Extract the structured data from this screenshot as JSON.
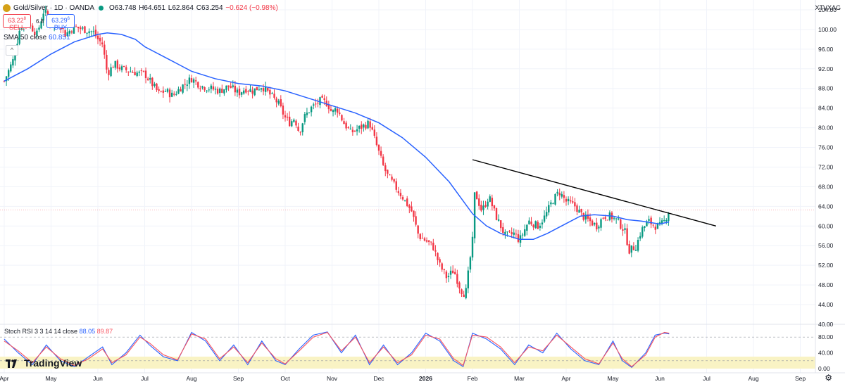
{
  "header": {
    "symbol_title": "Gold/Silver · 1D · OANDA",
    "ohlc": {
      "o": "O63.748",
      "h": "H64.651",
      "l": "L62.864",
      "c": "C63.254",
      "chg": "−0.624 (−0.98%)"
    },
    "sell_price": "63.22",
    "sell_sup": "8",
    "sell_label": "SELL",
    "spread": "6.8",
    "buy_price": "63.29",
    "buy_sup": "6",
    "buy_label": "BUY",
    "sma_label": "SMA 50 close",
    "sma_value": "60.851",
    "collapse_icon": "^",
    "right_symbol": "XTVXAG"
  },
  "stoch": {
    "label": "Stoch RSI 3 3 14 14 close",
    "k_value": "88.05",
    "d_value": "89.87",
    "k_color": "#2962ff",
    "d_color": "#f7525f"
  },
  "branding": {
    "logo_text": "TradingView"
  },
  "settings_icon": "gear-icon",
  "colors": {
    "up": "#089981",
    "down": "#f23645",
    "sma": "#2962ff",
    "trendline": "#000000"
  },
  "chart_data": [
    {
      "type": "candlestick",
      "title": "Gold/Silver · 1D · OANDA",
      "ylim": [
        40,
        106
      ],
      "price_ticks": [
        104,
        100,
        96,
        92,
        88,
        84,
        80,
        76,
        72,
        68,
        64,
        60,
        56,
        52,
        48,
        44,
        40
      ],
      "price_tick_labels": [
        "104.00",
        "100.00",
        "96.00",
        "92.00",
        "88.00",
        "84.00",
        "80.00",
        "76.00",
        "72.00",
        "68.00",
        "64.00",
        "60.00",
        "56.00",
        "52.00",
        "48.00",
        "44.00",
        "40.00"
      ],
      "x_labels": [
        "Apr",
        "May",
        "Jun",
        "Jul",
        "Aug",
        "Sep",
        "Oct",
        "Nov",
        "Dec",
        "2026",
        "Feb",
        "Mar",
        "Apr",
        "May",
        "Jun",
        "Jul",
        "Aug",
        "Sep"
      ],
      "x_label_months": [
        0,
        1,
        2,
        3,
        4,
        5,
        6,
        7,
        8,
        9,
        10,
        11,
        12,
        13,
        14,
        15,
        16,
        17
      ],
      "current_price": 63.254,
      "close_path": [
        [
          0.0,
          89.5
        ],
        [
          0.2,
          94
        ],
        [
          0.35,
          101
        ],
        [
          0.5,
          101.5
        ],
        [
          0.7,
          99
        ],
        [
          0.85,
          104
        ],
        [
          1.0,
          101
        ],
        [
          1.15,
          102
        ],
        [
          1.3,
          99
        ],
        [
          1.5,
          100.5
        ],
        [
          1.7,
          100
        ],
        [
          1.9,
          99.5
        ],
        [
          2.0,
          98
        ],
        [
          2.1,
          97
        ],
        [
          2.2,
          91
        ],
        [
          2.35,
          93
        ],
        [
          2.5,
          92
        ],
        [
          2.7,
          91.5
        ],
        [
          2.9,
          91
        ],
        [
          3.0,
          91
        ],
        [
          3.15,
          89
        ],
        [
          3.3,
          87
        ],
        [
          3.45,
          87.5
        ],
        [
          3.6,
          86.5
        ],
        [
          3.8,
          88.5
        ],
        [
          4.0,
          90
        ],
        [
          4.2,
          88.5
        ],
        [
          4.4,
          88
        ],
        [
          4.6,
          87.5
        ],
        [
          4.8,
          88.5
        ],
        [
          5.0,
          87
        ],
        [
          5.15,
          88
        ],
        [
          5.3,
          87.5
        ],
        [
          5.5,
          88.5
        ],
        [
          5.7,
          86.5
        ],
        [
          5.85,
          85
        ],
        [
          6.0,
          82
        ],
        [
          6.1,
          81
        ],
        [
          6.2,
          82
        ],
        [
          6.3,
          79
        ],
        [
          6.4,
          82
        ],
        [
          6.55,
          84
        ],
        [
          6.75,
          85.5
        ],
        [
          6.9,
          85
        ],
        [
          7.0,
          83
        ],
        [
          7.1,
          84
        ],
        [
          7.25,
          81
        ],
        [
          7.4,
          79
        ],
        [
          7.6,
          80
        ],
        [
          7.8,
          81
        ],
        [
          8.0,
          75
        ],
        [
          8.1,
          72
        ],
        [
          8.2,
          70
        ],
        [
          8.35,
          68
        ],
        [
          8.5,
          66
        ],
        [
          8.7,
          63
        ],
        [
          8.85,
          58
        ],
        [
          9.0,
          57
        ],
        [
          9.15,
          56
        ],
        [
          9.3,
          52
        ],
        [
          9.45,
          49.5
        ],
        [
          9.6,
          51
        ],
        [
          9.75,
          47
        ],
        [
          9.85,
          46
        ],
        [
          10.0,
          57
        ],
        [
          10.05,
          67
        ],
        [
          10.2,
          63
        ],
        [
          10.35,
          66
        ],
        [
          10.5,
          62
        ],
        [
          10.7,
          58
        ],
        [
          10.9,
          58.5
        ],
        [
          11.0,
          57
        ],
        [
          11.2,
          61
        ],
        [
          11.4,
          60
        ],
        [
          11.55,
          62
        ],
        [
          11.7,
          65
        ],
        [
          11.85,
          67
        ],
        [
          12.0,
          65
        ],
        [
          12.2,
          64
        ],
        [
          12.35,
          62
        ],
        [
          12.5,
          61
        ],
        [
          12.65,
          60
        ],
        [
          12.8,
          62
        ],
        [
          12.95,
          62
        ],
        [
          13.1,
          61
        ],
        [
          13.25,
          59
        ],
        [
          13.35,
          55
        ],
        [
          13.5,
          56
        ],
        [
          13.6,
          59
        ],
        [
          13.75,
          61
        ],
        [
          13.9,
          60
        ],
        [
          14.0,
          60
        ],
        [
          14.1,
          61
        ],
        [
          14.2,
          63.25
        ]
      ],
      "sma50_path": [
        [
          0.0,
          89.5
        ],
        [
          0.5,
          92
        ],
        [
          1.0,
          95
        ],
        [
          1.5,
          97.5
        ],
        [
          2.0,
          99
        ],
        [
          2.2,
          99.3
        ],
        [
          2.5,
          99
        ],
        [
          2.8,
          98
        ],
        [
          3.0,
          96.5
        ],
        [
          3.5,
          94
        ],
        [
          4.0,
          91.5
        ],
        [
          4.5,
          90
        ],
        [
          5.0,
          89
        ],
        [
          5.5,
          88.5
        ],
        [
          6.0,
          87.5
        ],
        [
          6.5,
          86
        ],
        [
          7.0,
          84.5
        ],
        [
          7.5,
          83
        ],
        [
          8.0,
          81
        ],
        [
          8.5,
          78
        ],
        [
          9.0,
          74
        ],
        [
          9.5,
          69
        ],
        [
          10.0,
          62.5
        ],
        [
          10.3,
          60
        ],
        [
          10.6,
          58.5
        ],
        [
          11.0,
          57.3
        ],
        [
          11.3,
          57.3
        ],
        [
          11.6,
          58.5
        ],
        [
          12.0,
          60.5
        ],
        [
          12.3,
          62
        ],
        [
          12.6,
          62.3
        ],
        [
          13.0,
          62
        ],
        [
          13.3,
          61.3
        ],
        [
          13.6,
          61
        ],
        [
          14.0,
          60.4
        ],
        [
          14.2,
          60.85
        ]
      ],
      "trendline": {
        "from": [
          10.0,
          73.5
        ],
        "to": [
          15.2,
          60
        ]
      }
    },
    {
      "type": "line",
      "title": "Stoch RSI 3 3 14 14 close",
      "ylim": [
        0,
        100
      ],
      "y_ticks": [
        80,
        40,
        0
      ],
      "y_tick_labels": [
        "80.00",
        "40.00",
        "0.00"
      ],
      "overbought": 80,
      "oversold": 20,
      "series": [
        {
          "name": "K",
          "values": [
            [
              0.0,
              75
            ],
            [
              0.3,
              40
            ],
            [
              0.6,
              10
            ],
            [
              0.9,
              60
            ],
            [
              1.2,
              20
            ],
            [
              1.5,
              5
            ],
            [
              1.8,
              30
            ],
            [
              2.1,
              55
            ],
            [
              2.3,
              10
            ],
            [
              2.6,
              40
            ],
            [
              2.9,
              85
            ],
            [
              3.1,
              60
            ],
            [
              3.4,
              30
            ],
            [
              3.7,
              20
            ],
            [
              4.0,
              92
            ],
            [
              4.3,
              70
            ],
            [
              4.6,
              20
            ],
            [
              4.9,
              60
            ],
            [
              5.2,
              10
            ],
            [
              5.5,
              70
            ],
            [
              5.8,
              20
            ],
            [
              6.0,
              10
            ],
            [
              6.3,
              50
            ],
            [
              6.6,
              85
            ],
            [
              6.9,
              93
            ],
            [
              7.2,
              40
            ],
            [
              7.5,
              85
            ],
            [
              7.8,
              10
            ],
            [
              8.1,
              60
            ],
            [
              8.4,
              10
            ],
            [
              8.7,
              40
            ],
            [
              9.0,
              90
            ],
            [
              9.3,
              70
            ],
            [
              9.6,
              20
            ],
            [
              9.8,
              5
            ],
            [
              10.0,
              90
            ],
            [
              10.3,
              75
            ],
            [
              10.6,
              50
            ],
            [
              10.9,
              10
            ],
            [
              11.2,
              60
            ],
            [
              11.5,
              40
            ],
            [
              11.8,
              90
            ],
            [
              12.1,
              50
            ],
            [
              12.4,
              20
            ],
            [
              12.7,
              10
            ],
            [
              13.0,
              70
            ],
            [
              13.2,
              20
            ],
            [
              13.4,
              3
            ],
            [
              13.7,
              40
            ],
            [
              13.9,
              85
            ],
            [
              14.1,
              90
            ],
            [
              14.2,
              88.05
            ]
          ]
        },
        {
          "name": "D",
          "values": [
            [
              0.0,
              70
            ],
            [
              0.3,
              45
            ],
            [
              0.6,
              15
            ],
            [
              0.9,
              55
            ],
            [
              1.2,
              25
            ],
            [
              1.5,
              8
            ],
            [
              1.8,
              25
            ],
            [
              2.1,
              50
            ],
            [
              2.3,
              15
            ],
            [
              2.6,
              35
            ],
            [
              2.9,
              80
            ],
            [
              3.1,
              65
            ],
            [
              3.4,
              35
            ],
            [
              3.7,
              22
            ],
            [
              4.0,
              88
            ],
            [
              4.3,
              75
            ],
            [
              4.6,
              25
            ],
            [
              4.9,
              55
            ],
            [
              5.2,
              15
            ],
            [
              5.5,
              65
            ],
            [
              5.8,
              25
            ],
            [
              6.0,
              12
            ],
            [
              6.3,
              45
            ],
            [
              6.6,
              80
            ],
            [
              6.9,
              92
            ],
            [
              7.2,
              45
            ],
            [
              7.5,
              80
            ],
            [
              7.8,
              15
            ],
            [
              8.1,
              55
            ],
            [
              8.4,
              15
            ],
            [
              8.7,
              35
            ],
            [
              9.0,
              85
            ],
            [
              9.3,
              75
            ],
            [
              9.6,
              25
            ],
            [
              9.8,
              8
            ],
            [
              10.0,
              85
            ],
            [
              10.3,
              80
            ],
            [
              10.6,
              55
            ],
            [
              10.9,
              15
            ],
            [
              11.2,
              55
            ],
            [
              11.5,
              45
            ],
            [
              11.8,
              85
            ],
            [
              12.1,
              55
            ],
            [
              12.4,
              25
            ],
            [
              12.7,
              12
            ],
            [
              13.0,
              65
            ],
            [
              13.2,
              25
            ],
            [
              13.4,
              5
            ],
            [
              13.7,
              35
            ],
            [
              13.9,
              80
            ],
            [
              14.1,
              92
            ],
            [
              14.2,
              89.87
            ]
          ]
        }
      ]
    }
  ]
}
